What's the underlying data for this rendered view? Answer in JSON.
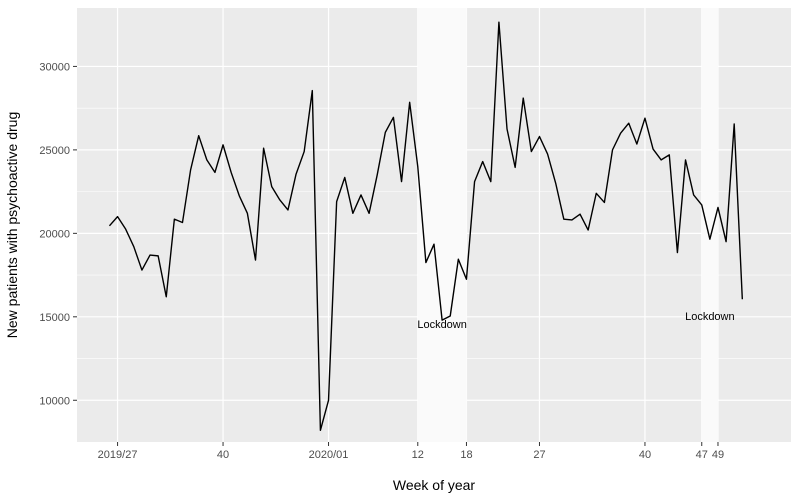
{
  "chart_data": {
    "type": "line",
    "title": "",
    "xlabel": "Week of year",
    "ylabel": "New patients with psychoactive drug",
    "xlim": [
      -4,
      84
    ],
    "ylim": [
      7500,
      33500
    ],
    "grid": true,
    "legend": "none",
    "x_ticks": [
      {
        "x": 1,
        "label": "2019/27"
      },
      {
        "x": 14,
        "label": "40"
      },
      {
        "x": 27,
        "label": "2020/01"
      },
      {
        "x": 38,
        "label": "12"
      },
      {
        "x": 44,
        "label": "18"
      },
      {
        "x": 53,
        "label": "27"
      },
      {
        "x": 66,
        "label": "40"
      },
      {
        "x": 73,
        "label": "47"
      },
      {
        "x": 75,
        "label": "49"
      }
    ],
    "y_ticks": [
      10000,
      15000,
      20000,
      25000,
      30000
    ],
    "shaded_regions": [
      {
        "x_start": 38,
        "x_end": 44,
        "label": "Lockdown"
      },
      {
        "x_start": 73,
        "x_end": 75,
        "label": "Lockdown"
      }
    ],
    "series": [
      {
        "values": [
          {
            "x": 0,
            "y": 20450
          },
          {
            "x": 1,
            "y": 21000
          },
          {
            "x": 2,
            "y": 20250
          },
          {
            "x": 3,
            "y": 19200
          },
          {
            "x": 4,
            "y": 17800
          },
          {
            "x": 5,
            "y": 18700
          },
          {
            "x": 6,
            "y": 18650
          },
          {
            "x": 7,
            "y": 16200
          },
          {
            "x": 8,
            "y": 20850
          },
          {
            "x": 9,
            "y": 20650
          },
          {
            "x": 10,
            "y": 23800
          },
          {
            "x": 11,
            "y": 25850
          },
          {
            "x": 12,
            "y": 24400
          },
          {
            "x": 13,
            "y": 23650
          },
          {
            "x": 14,
            "y": 25300
          },
          {
            "x": 15,
            "y": 23650
          },
          {
            "x": 16,
            "y": 22250
          },
          {
            "x": 17,
            "y": 21200
          },
          {
            "x": 18,
            "y": 18400
          },
          {
            "x": 19,
            "y": 25100
          },
          {
            "x": 20,
            "y": 22800
          },
          {
            "x": 21,
            "y": 22000
          },
          {
            "x": 22,
            "y": 21400
          },
          {
            "x": 23,
            "y": 23550
          },
          {
            "x": 24,
            "y": 24900
          },
          {
            "x": 25,
            "y": 28550
          },
          {
            "x": 26,
            "y": 8200
          },
          {
            "x": 27,
            "y": 10000
          },
          {
            "x": 28,
            "y": 21900
          },
          {
            "x": 29,
            "y": 23350
          },
          {
            "x": 30,
            "y": 21200
          },
          {
            "x": 31,
            "y": 22300
          },
          {
            "x": 32,
            "y": 21200
          },
          {
            "x": 33,
            "y": 23500
          },
          {
            "x": 34,
            "y": 26050
          },
          {
            "x": 35,
            "y": 26950
          },
          {
            "x": 36,
            "y": 23100
          },
          {
            "x": 37,
            "y": 27850
          },
          {
            "x": 38,
            "y": 24000
          },
          {
            "x": 39,
            "y": 18250
          },
          {
            "x": 40,
            "y": 19350
          },
          {
            "x": 41,
            "y": 14800
          },
          {
            "x": 42,
            "y": 15050
          },
          {
            "x": 43,
            "y": 18450
          },
          {
            "x": 44,
            "y": 17250
          },
          {
            "x": 45,
            "y": 23100
          },
          {
            "x": 46,
            "y": 24300
          },
          {
            "x": 47,
            "y": 23100
          },
          {
            "x": 48,
            "y": 32650
          },
          {
            "x": 49,
            "y": 26250
          },
          {
            "x": 50,
            "y": 23950
          },
          {
            "x": 51,
            "y": 28100
          },
          {
            "x": 52,
            "y": 24900
          },
          {
            "x": 53,
            "y": 25800
          },
          {
            "x": 54,
            "y": 24750
          },
          {
            "x": 55,
            "y": 23000
          },
          {
            "x": 56,
            "y": 20850
          },
          {
            "x": 57,
            "y": 20800
          },
          {
            "x": 58,
            "y": 21150
          },
          {
            "x": 59,
            "y": 20200
          },
          {
            "x": 60,
            "y": 22400
          },
          {
            "x": 61,
            "y": 21850
          },
          {
            "x": 62,
            "y": 25000
          },
          {
            "x": 63,
            "y": 26000
          },
          {
            "x": 64,
            "y": 26600
          },
          {
            "x": 65,
            "y": 25350
          },
          {
            "x": 66,
            "y": 26900
          },
          {
            "x": 67,
            "y": 25050
          },
          {
            "x": 68,
            "y": 24400
          },
          {
            "x": 69,
            "y": 24700
          },
          {
            "x": 70,
            "y": 18850
          },
          {
            "x": 71,
            "y": 24400
          },
          {
            "x": 72,
            "y": 22300
          },
          {
            "x": 73,
            "y": 21700
          },
          {
            "x": 74,
            "y": 19650
          },
          {
            "x": 75,
            "y": 21550
          },
          {
            "x": 76,
            "y": 19500
          },
          {
            "x": 77,
            "y": 26550
          },
          {
            "x": 78,
            "y": 16050
          }
        ],
        "color": "#000000"
      }
    ],
    "colors": {
      "panel_background": "#ebebeb",
      "grid_major": "#ffffff",
      "lockdown_band": "#fafafa",
      "line": "#000000"
    }
  }
}
